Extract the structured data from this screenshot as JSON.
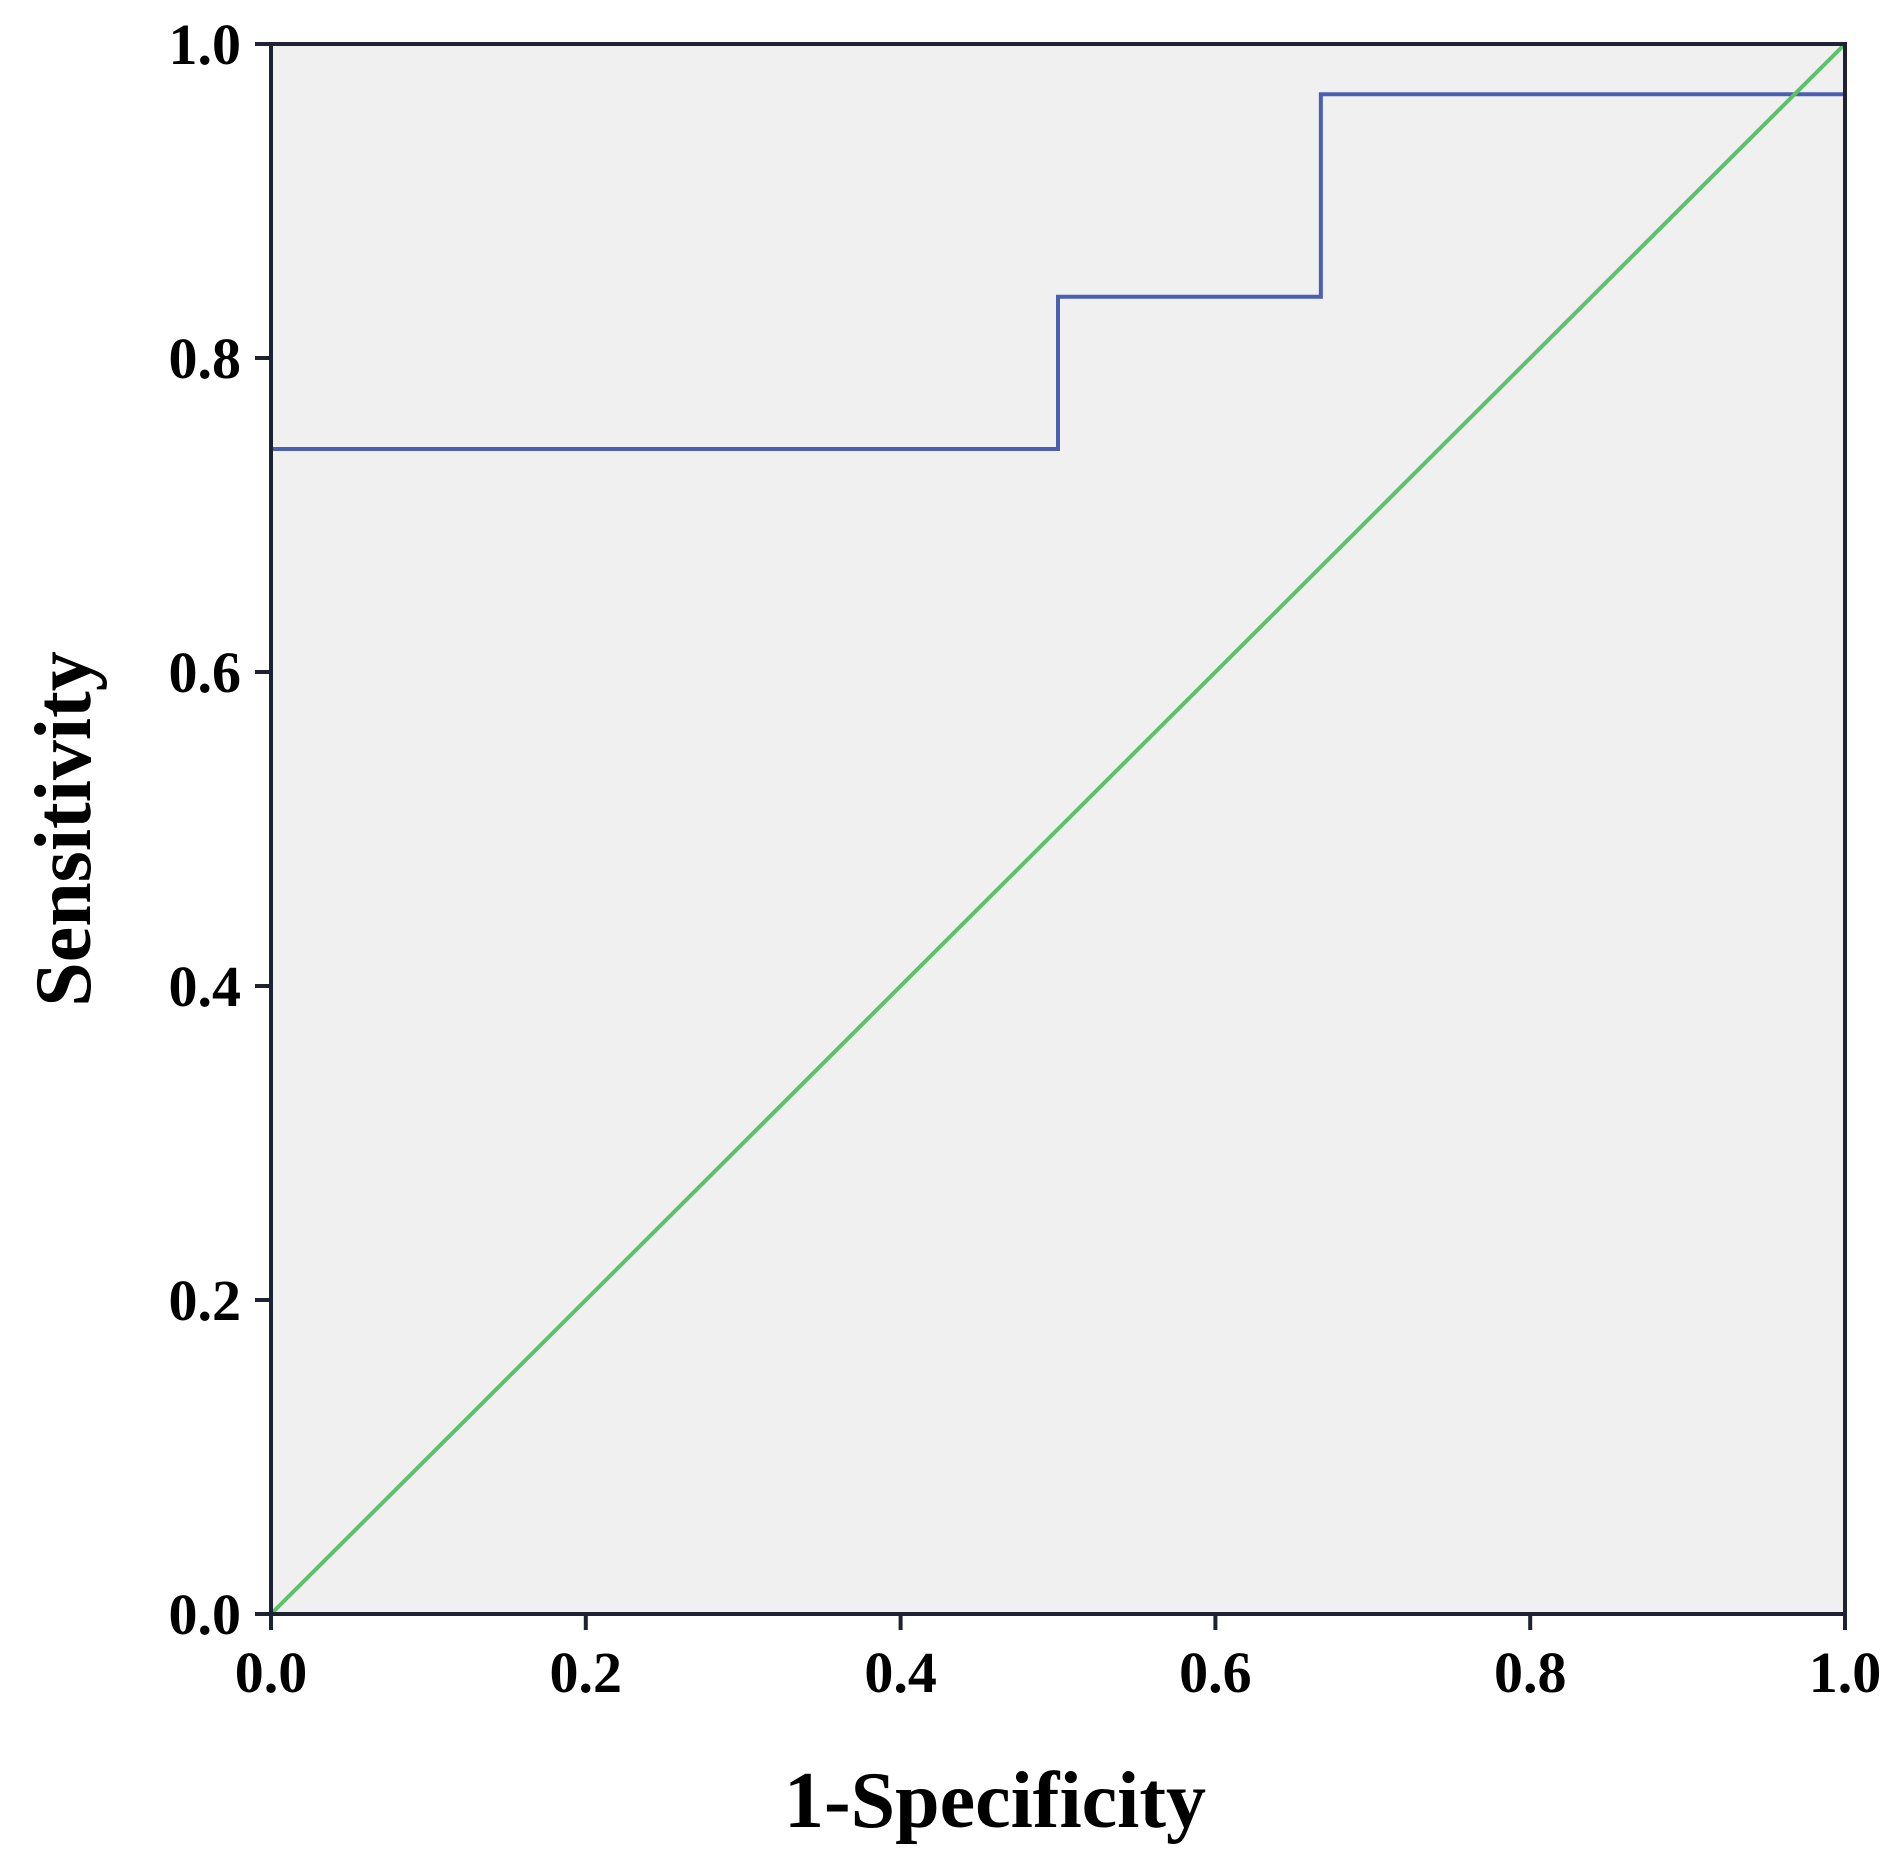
{
  "chart_data": {
    "type": "line",
    "title": "",
    "xlabel": "1-Specificity",
    "ylabel": "Sensitivity",
    "xlim": [
      0,
      1
    ],
    "ylim": [
      0,
      1
    ],
    "x_ticks": [
      "0.0",
      "0.2",
      "0.4",
      "0.6",
      "0.8",
      "1.0"
    ],
    "y_ticks": [
      "0.0",
      "0.2",
      "0.4",
      "0.6",
      "0.8",
      "1.0"
    ],
    "grid": false,
    "legend": "none",
    "background": "#f0f0f0",
    "series": [
      {
        "color": "#4a5fb0",
        "step": true,
        "x": [
          0.0,
          0.0,
          0.5,
          0.5,
          0.667,
          0.667,
          1.0,
          1.0
        ],
        "y": [
          0.0,
          0.742,
          0.742,
          0.839,
          0.839,
          0.968,
          0.968,
          1.0
        ]
      },
      {
        "color": "#5cc16a",
        "step": false,
        "x": [
          0.0,
          1.0
        ],
        "y": [
          0.0,
          1.0
        ]
      }
    ]
  }
}
